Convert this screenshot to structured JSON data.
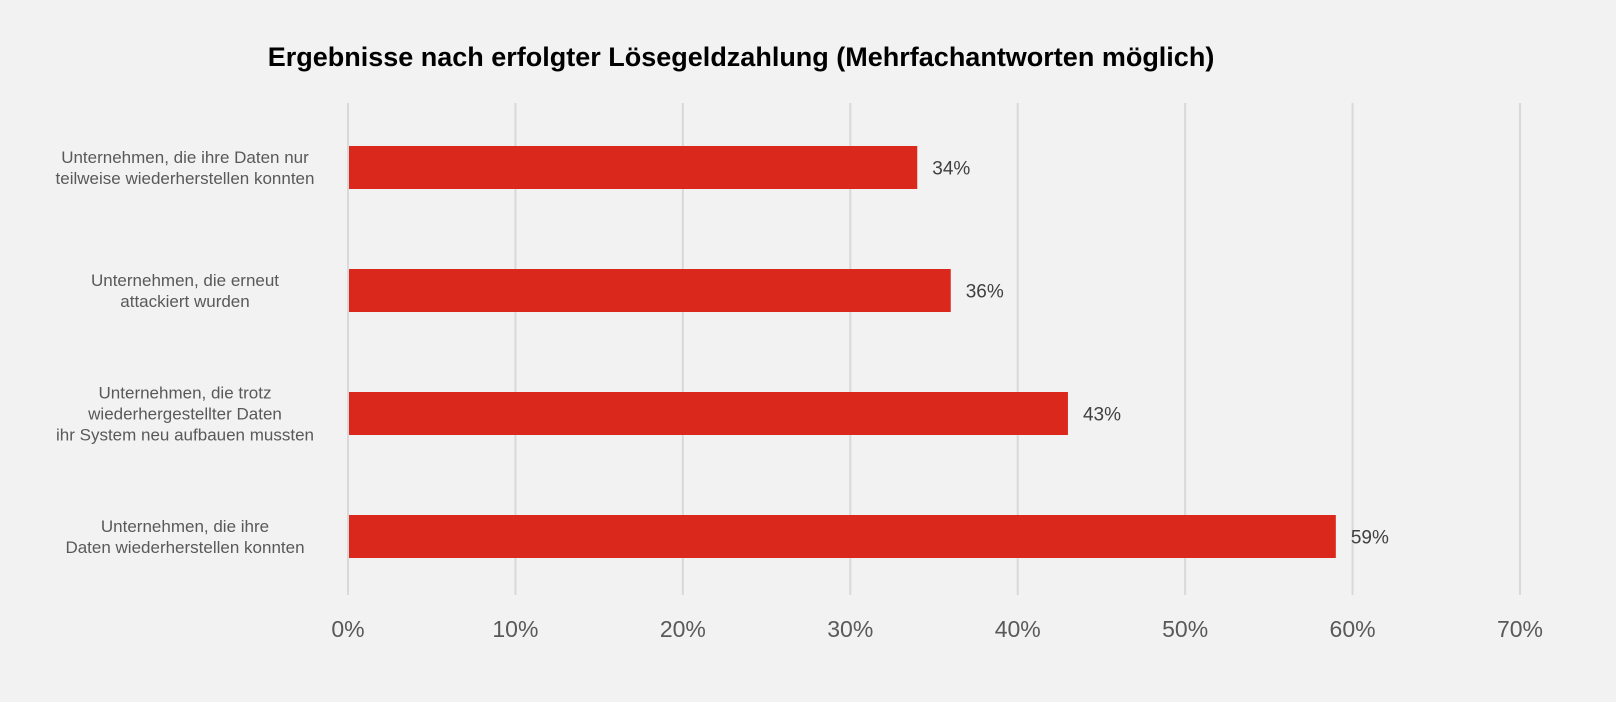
{
  "chart_data": {
    "type": "bar",
    "orientation": "horizontal",
    "title": "Ergebnisse nach erfolgter Lösegeldzahlung (Mehrfachantworten möglich)",
    "categories": [
      [
        "Unternehmen, die ihre Daten nur",
        "teilweise wiederherstellen konnten"
      ],
      [
        "Unternehmen, die erneut",
        "attackiert wurden"
      ],
      [
        "Unternehmen, die trotz",
        "wiederhergestellter Daten",
        "ihr System neu aufbauen mussten"
      ],
      [
        "Unternehmen, die ihre",
        "Daten wiederherstellen konnten"
      ]
    ],
    "values": [
      34,
      36,
      43,
      59
    ],
    "data_labels": [
      "34%",
      "36%",
      "43%",
      "59%"
    ],
    "xlim": [
      0,
      70
    ],
    "ticks": [
      "0%",
      "10%",
      "20%",
      "30%",
      "40%",
      "50%",
      "60%",
      "70%"
    ],
    "grid": true,
    "legend": "none",
    "colors": {
      "bar": "#da291c",
      "background": "#f2f2f2",
      "grid": "#d9d9d9"
    }
  }
}
